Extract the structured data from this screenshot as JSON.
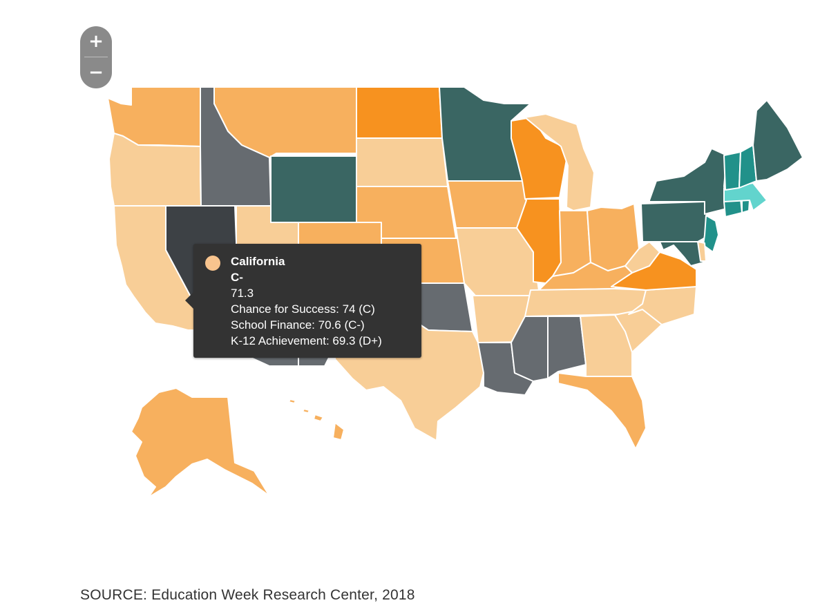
{
  "map": {
    "colors": {
      "light_peach": "#f8ce97",
      "peach": "#f7b05e",
      "orange": "#f7921f",
      "slate": "#666b70",
      "charcoal": "#3d4145",
      "dark_teal": "#3a6663",
      "teal": "#21918a",
      "aqua": "#62d4cd"
    },
    "states": [
      {
        "id": "WA",
        "fill": "peach"
      },
      {
        "id": "OR",
        "fill": "light_peach"
      },
      {
        "id": "CA",
        "fill": "light_peach"
      },
      {
        "id": "ID",
        "fill": "slate"
      },
      {
        "id": "NV",
        "fill": "charcoal"
      },
      {
        "id": "MT",
        "fill": "peach"
      },
      {
        "id": "WY",
        "fill": "dark_teal"
      },
      {
        "id": "UT",
        "fill": "light_peach"
      },
      {
        "id": "AZ",
        "fill": "slate"
      },
      {
        "id": "CO",
        "fill": "peach"
      },
      {
        "id": "NM",
        "fill": "slate"
      },
      {
        "id": "ND",
        "fill": "orange"
      },
      {
        "id": "SD",
        "fill": "light_peach"
      },
      {
        "id": "NE",
        "fill": "peach"
      },
      {
        "id": "KS",
        "fill": "peach"
      },
      {
        "id": "OK",
        "fill": "slate"
      },
      {
        "id": "TX",
        "fill": "light_peach"
      },
      {
        "id": "MN",
        "fill": "dark_teal"
      },
      {
        "id": "IA",
        "fill": "peach"
      },
      {
        "id": "MO",
        "fill": "light_peach"
      },
      {
        "id": "AR",
        "fill": "light_peach"
      },
      {
        "id": "LA",
        "fill": "slate"
      },
      {
        "id": "WI",
        "fill": "orange"
      },
      {
        "id": "IL",
        "fill": "orange"
      },
      {
        "id": "MI",
        "fill": "light_peach"
      },
      {
        "id": "IN",
        "fill": "peach"
      },
      {
        "id": "OH",
        "fill": "peach"
      },
      {
        "id": "KY",
        "fill": "peach"
      },
      {
        "id": "TN",
        "fill": "light_peach"
      },
      {
        "id": "MS",
        "fill": "slate"
      },
      {
        "id": "AL",
        "fill": "slate"
      },
      {
        "id": "GA",
        "fill": "light_peach"
      },
      {
        "id": "FL",
        "fill": "peach"
      },
      {
        "id": "SC",
        "fill": "light_peach"
      },
      {
        "id": "NC",
        "fill": "light_peach"
      },
      {
        "id": "VA",
        "fill": "orange"
      },
      {
        "id": "WV",
        "fill": "light_peach"
      },
      {
        "id": "PA",
        "fill": "dark_teal"
      },
      {
        "id": "NY",
        "fill": "dark_teal"
      },
      {
        "id": "NJ",
        "fill": "teal"
      },
      {
        "id": "MD",
        "fill": "dark_teal"
      },
      {
        "id": "DE",
        "fill": "light_peach"
      },
      {
        "id": "CT",
        "fill": "teal"
      },
      {
        "id": "RI",
        "fill": "teal"
      },
      {
        "id": "MA",
        "fill": "aqua"
      },
      {
        "id": "VT",
        "fill": "teal"
      },
      {
        "id": "NH",
        "fill": "teal"
      },
      {
        "id": "ME",
        "fill": "dark_teal"
      },
      {
        "id": "AK",
        "fill": "peach"
      },
      {
        "id": "HI",
        "fill": "peach"
      }
    ]
  },
  "zoom": {
    "in_label": "+",
    "out_label": "−"
  },
  "tooltip": {
    "state": "California",
    "grade": "C-",
    "score": "71.3",
    "chance_for_success": "Chance for Success: 74 (C)",
    "school_finance": "School Finance: 70.6 (C-)",
    "k12_achievement": "K-12 Achievement: 69.3 (D+)",
    "dot_color": "#f8c48e"
  },
  "source": "SOURCE: Education Week Research Center, 2018"
}
